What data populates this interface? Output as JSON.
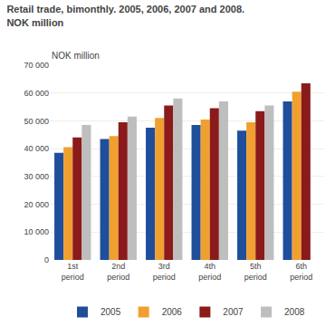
{
  "chart_data": {
    "type": "bar",
    "title": "Retail trade, bimonthly. 2005, 2006, 2007 and 2008.",
    "subtitle": "NOK million",
    "ylabel": "NOK million",
    "categories": [
      "1st\nperiod",
      "2nd\nperiod",
      "3rd\nperiod",
      "4th\nperiod",
      "5th\nperiod",
      "6th\nperiod"
    ],
    "series": [
      {
        "name": "2005",
        "color": "#1F4E9B",
        "values": [
          38500,
          43500,
          47500,
          48500,
          46500,
          57000
        ]
      },
      {
        "name": "2006",
        "color": "#F0A030",
        "values": [
          40500,
          44500,
          51000,
          50500,
          49500,
          60500
        ]
      },
      {
        "name": "2007",
        "color": "#8B1A1A",
        "values": [
          44000,
          49500,
          55500,
          54500,
          53500,
          63500
        ]
      },
      {
        "name": "2008",
        "color": "#BEBEBE",
        "values": [
          48500,
          51500,
          58000,
          57000,
          55500,
          0
        ]
      }
    ],
    "ylim": [
      0,
      70000
    ],
    "yticks": [
      0,
      {
        "value": 10000,
        "label": "10 000"
      },
      {
        "value": 20000,
        "label": "20 000"
      },
      {
        "value": 30000,
        "label": "30 000"
      },
      {
        "value": 40000,
        "label": "40 000"
      },
      {
        "value": 50000,
        "label": "50 000"
      },
      {
        "value": 60000,
        "label": "60 000"
      },
      {
        "value": 70000,
        "label": "70 000"
      }
    ],
    "grid": true,
    "legend": "bottom"
  }
}
